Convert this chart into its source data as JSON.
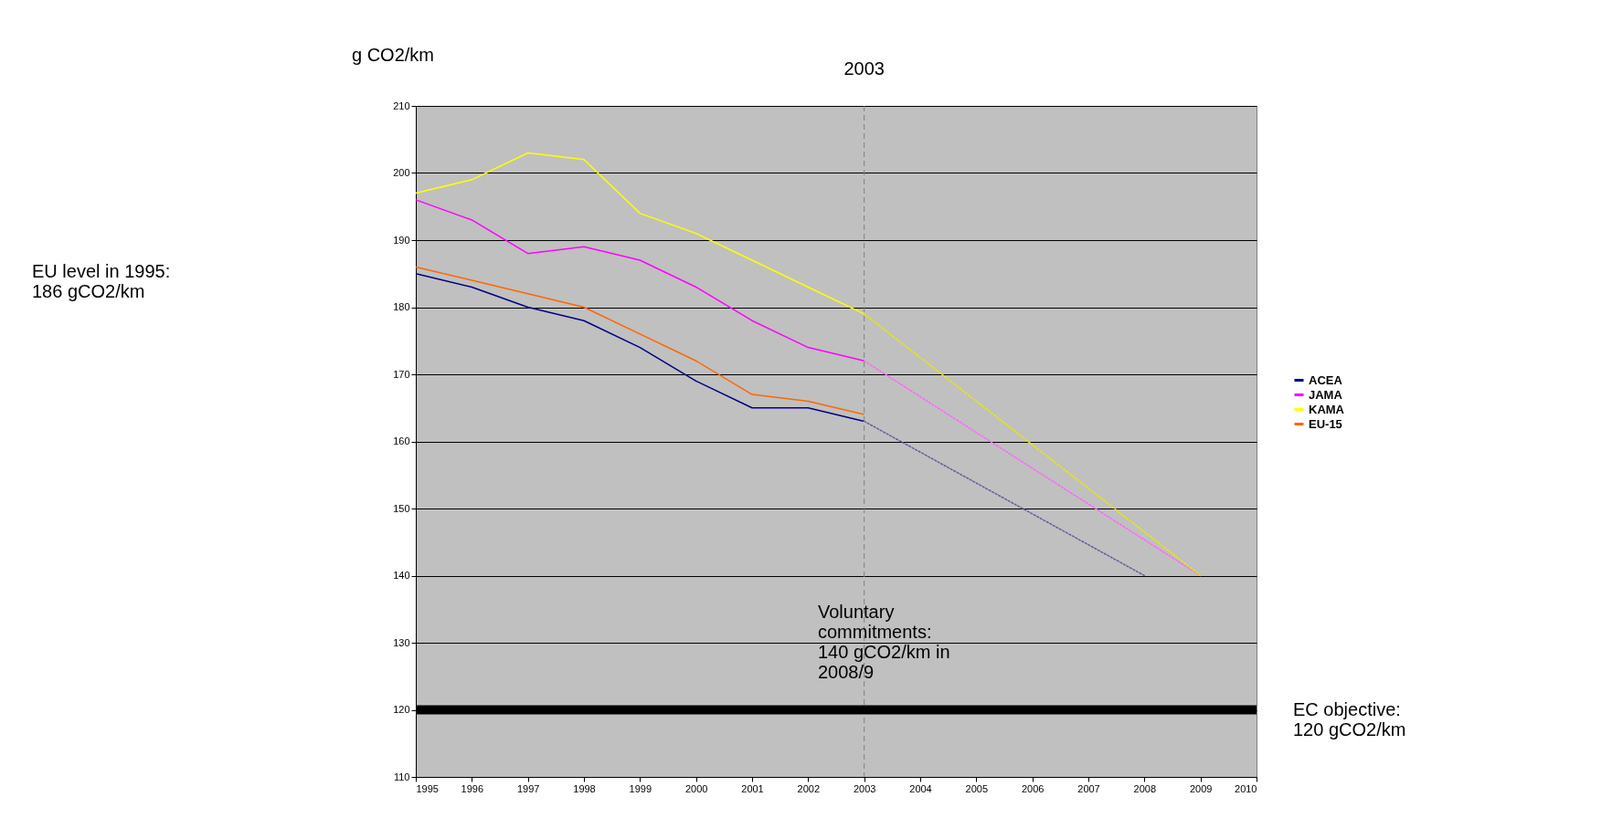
{
  "chart_data": {
    "type": "line",
    "ylabel": "g CO2/km",
    "x": [
      1995,
      1996,
      1997,
      1998,
      1999,
      2000,
      2001,
      2002,
      2003
    ],
    "series": [
      {
        "name": "ACEA",
        "color": "#000080",
        "values": [
          185,
          183,
          180,
          178,
          174,
          169,
          165,
          165,
          163
        ]
      },
      {
        "name": "JAMA",
        "color": "#ff00ff",
        "values": [
          196,
          193,
          188,
          189,
          187,
          183,
          178,
          174,
          172
        ]
      },
      {
        "name": "KAMA",
        "color": "#ffff00",
        "values": [
          197,
          199,
          203,
          202,
          194,
          191,
          187,
          183,
          179
        ]
      },
      {
        "name": "EU-15",
        "color": "#ff6600",
        "values": [
          186,
          184,
          182,
          180,
          176,
          172,
          167,
          166,
          164
        ]
      },
      {
        "color": "#6060a0",
        "x": [
          2003,
          2008
        ],
        "values": [
          163,
          140
        ],
        "line_style": "dotted"
      },
      {
        "color": "#ff66ff",
        "x": [
          2003,
          2009
        ],
        "values": [
          172,
          140
        ],
        "line_style": "dotted"
      },
      {
        "color": "#e8e800",
        "x": [
          2003,
          2009
        ],
        "values": [
          179,
          140
        ],
        "line_style": "dotted"
      }
    ],
    "xlim": [
      1995,
      2010
    ],
    "xticks": [
      1995,
      1996,
      1997,
      1998,
      1999,
      2000,
      2001,
      2002,
      2003,
      2004,
      2005,
      2006,
      2007,
      2008,
      2009,
      2010
    ],
    "ylim": [
      110,
      210
    ],
    "yticks": [
      110,
      120,
      130,
      140,
      150,
      160,
      170,
      180,
      190,
      200,
      210
    ],
    "grid": "y",
    "legend": "right",
    "line_style": "solid",
    "ref_lines": [
      {
        "axis": "x",
        "value": 2003,
        "label": "2003",
        "color": "#808080",
        "line_style": "dashed"
      },
      {
        "axis": "y",
        "value": 120,
        "label": "EC objective:\n120 gCO2/km",
        "color": "#000000"
      }
    ],
    "annotations": [
      "EU level in 1995:\n186 gCO2/km",
      "Voluntary\ncommitments:\n140 gCO2/km in\n2008/9"
    ]
  }
}
